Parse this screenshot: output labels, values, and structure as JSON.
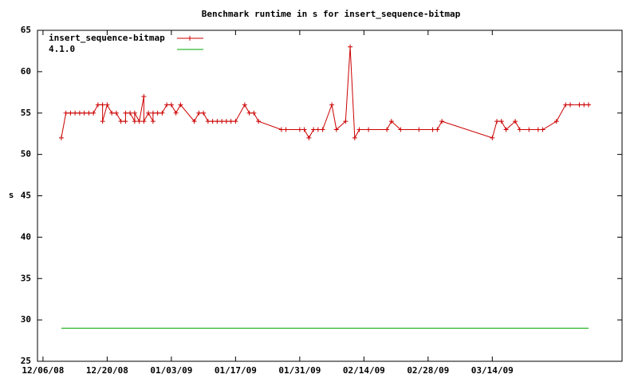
{
  "chart_data": {
    "type": "line",
    "title": "Benchmark runtime in s for insert_sequence-bitmap",
    "y_label": "s",
    "xlim": [
      -1.2,
      126.3
    ],
    "xticks": [
      {
        "value": 0,
        "label": "12/06/08"
      },
      {
        "value": 14,
        "label": "12/20/08"
      },
      {
        "value": 28,
        "label": "01/03/09"
      },
      {
        "value": 42,
        "label": "01/17/09"
      },
      {
        "value": 56,
        "label": "01/31/09"
      },
      {
        "value": 70,
        "label": "02/14/09"
      },
      {
        "value": 84,
        "label": "02/28/09"
      },
      {
        "value": 98,
        "label": "03/14/09"
      }
    ],
    "ylim": [
      25,
      65
    ],
    "yticks": [
      25,
      30,
      35,
      40,
      45,
      50,
      55,
      60,
      65
    ],
    "legend": "top-left",
    "series": [
      {
        "name": "insert_sequence-bitmap",
        "color": "#cc0000",
        "marker": "plus",
        "x": [
          4,
          5,
          6,
          7,
          8,
          9,
          10,
          11,
          12,
          13,
          13,
          14,
          15,
          16,
          17,
          18,
          18,
          19,
          20,
          20,
          21,
          22,
          22,
          23,
          24,
          24,
          25,
          26,
          27,
          28,
          29,
          30,
          33,
          34,
          35,
          36,
          37,
          38,
          39,
          40,
          41,
          42,
          44,
          45,
          46,
          47,
          52,
          53,
          56,
          57,
          58,
          59,
          60,
          61,
          63,
          64,
          66,
          67,
          68,
          69,
          71,
          75,
          76,
          78,
          82,
          85,
          86,
          87,
          98,
          99,
          100,
          101,
          103,
          104,
          106,
          108,
          109,
          112,
          114,
          115,
          117,
          118,
          119
        ],
        "values": [
          52,
          55,
          55,
          55,
          55,
          55,
          55,
          55,
          56,
          56,
          54,
          56,
          55,
          55,
          54,
          54,
          55,
          55,
          54,
          55,
          54,
          57,
          54,
          55,
          54,
          55,
          55,
          55,
          56,
          56,
          55,
          56,
          54,
          55,
          55,
          54,
          54,
          54,
          54,
          54,
          54,
          54,
          56,
          55,
          55,
          54,
          53,
          53,
          53,
          53,
          52,
          53,
          53,
          53,
          56,
          53,
          54,
          63,
          52,
          53,
          53,
          53,
          54,
          53,
          53,
          53,
          53,
          54,
          52,
          54,
          54,
          53,
          54,
          53,
          53,
          53,
          53,
          54,
          56,
          56,
          56,
          56,
          56
        ]
      },
      {
        "name": "4.1.0",
        "color": "#00aa00",
        "marker": "none",
        "x": [
          4,
          119
        ],
        "values": [
          29,
          29
        ]
      }
    ]
  }
}
